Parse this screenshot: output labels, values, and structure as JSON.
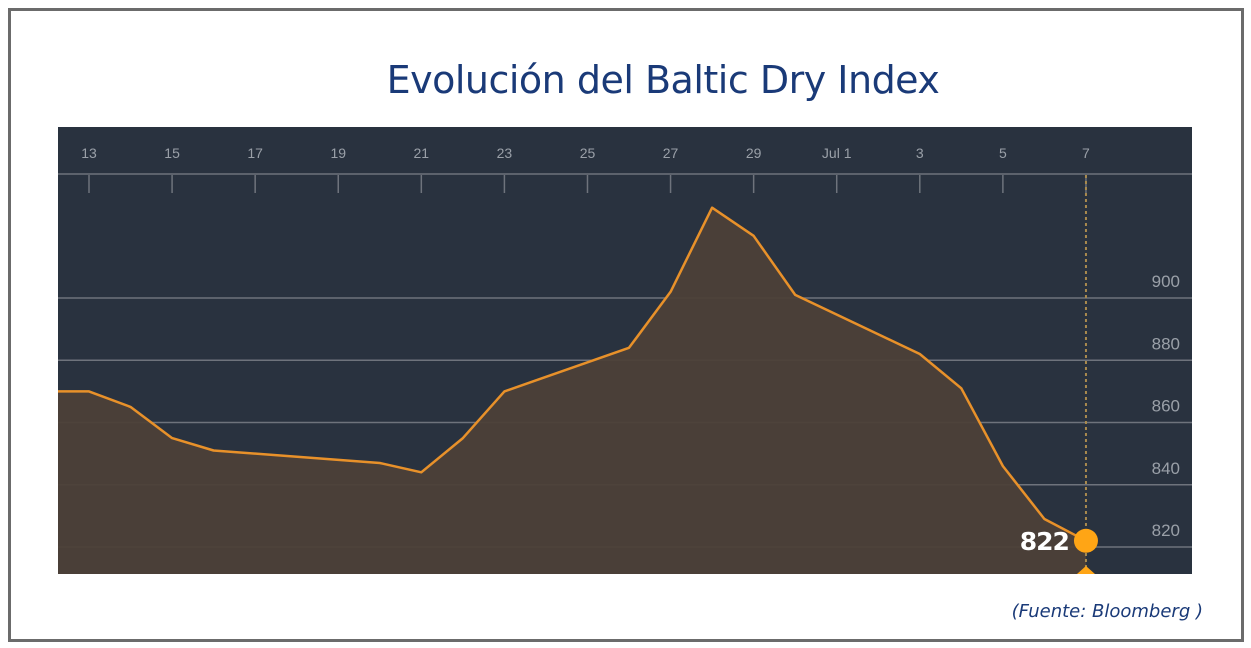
{
  "title": "Evolución del Baltic Dry Index",
  "source": "(Fuente: Bloomberg )",
  "colors": {
    "background": "#29323f",
    "line": "#e8912a",
    "fill": "#4c4038",
    "marker": "#ffa515",
    "grid": "#6e737c",
    "tick_text": "#9aa0a8",
    "title": "#1a3a78"
  },
  "chart_data": {
    "type": "area",
    "title": "Evolución del Baltic Dry Index",
    "xlabel": "",
    "ylabel": "",
    "x_ticks": [
      "13",
      "15",
      "17",
      "19",
      "21",
      "23",
      "25",
      "27",
      "29",
      "Jul 1",
      "3",
      "5",
      "7"
    ],
    "y_ticks": [
      820,
      840,
      860,
      880,
      900
    ],
    "ylim": [
      809,
      953
    ],
    "grid": "horizontal",
    "series": [
      {
        "name": "Baltic Dry Index",
        "x": [
          "Jun 12",
          "Jun 13",
          "Jun 14",
          "Jun 15",
          "Jun 16",
          "Jun 20",
          "Jun 21",
          "Jun 22",
          "Jun 23",
          "Jun 26",
          "Jun 27",
          "Jun 28",
          "Jun 29",
          "Jun 30",
          "Jul 3",
          "Jul 4",
          "Jul 5",
          "Jul 6",
          "Jul 7"
        ],
        "values": [
          870,
          870,
          865,
          855,
          851,
          847,
          844,
          855,
          870,
          884,
          902,
          929,
          920,
          901,
          882,
          871,
          846,
          829,
          822
        ]
      }
    ],
    "annotations": [
      {
        "x": "Jul 7",
        "value": 822,
        "label": "822",
        "marker": "circle",
        "crosshair": "dotted-vertical"
      }
    ]
  },
  "marker_label": "822"
}
